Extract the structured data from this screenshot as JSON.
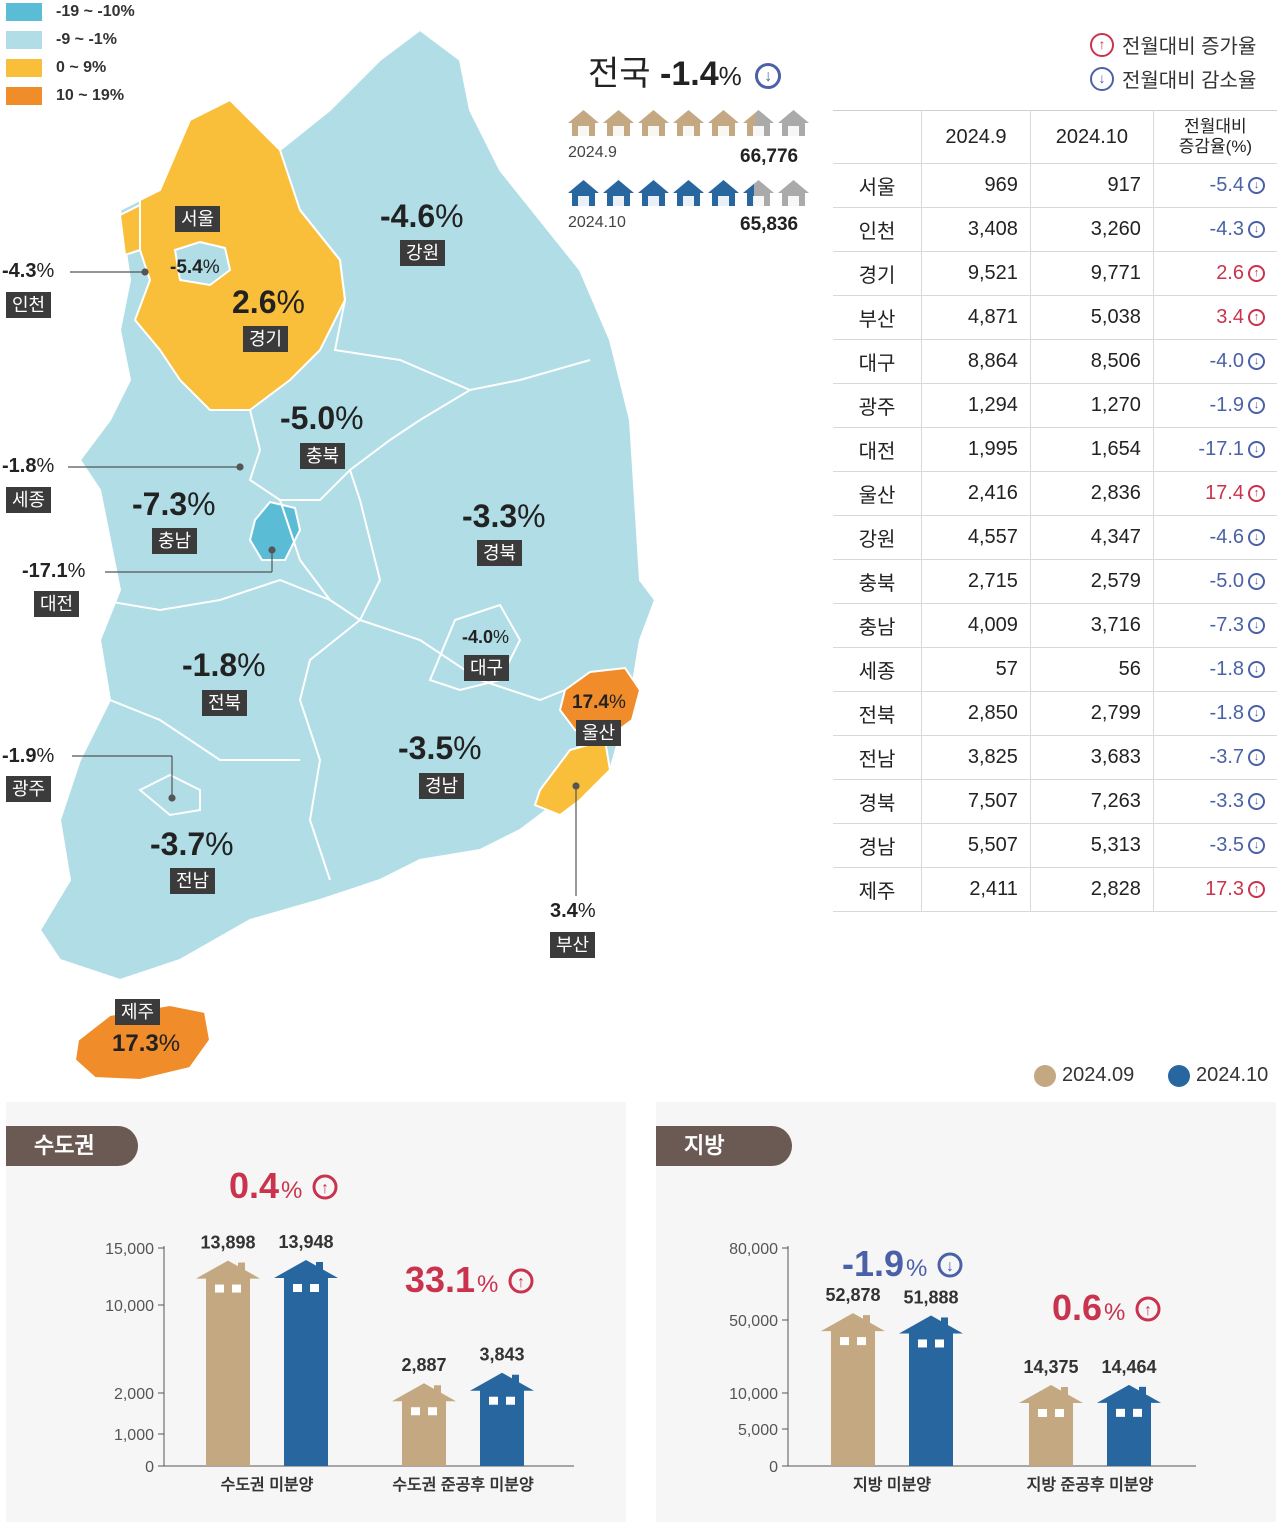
{
  "legend": [
    {
      "label": "-19 ~ -10%",
      "color": "#5bbcd6"
    },
    {
      "label": "-9 ~ -1%",
      "color": "#b0dde6"
    },
    {
      "label": "0 ~ 9%",
      "color": "#f9bf3b"
    },
    {
      "label": "10 ~ 19%",
      "color": "#f08c2a"
    }
  ],
  "national": {
    "label": "전국",
    "value": "-1.4",
    "unit": "%",
    "row1_label": "2024.9",
    "row1_total": "66,776",
    "row2_label": "2024.10",
    "row2_total": "65,836"
  },
  "arrow_legend": {
    "up": "전월대비 증가율",
    "down": "전월대비 감소율"
  },
  "map_regions": [
    {
      "name": "서울",
      "value": "-5.4",
      "unit": "%"
    },
    {
      "name": "인천",
      "value": "-4.3",
      "unit": "%"
    },
    {
      "name": "경기",
      "value": "2.6",
      "unit": "%"
    },
    {
      "name": "강원",
      "value": "-4.6",
      "unit": "%"
    },
    {
      "name": "충북",
      "value": "-5.0",
      "unit": "%"
    },
    {
      "name": "세종",
      "value": "-1.8",
      "unit": "%"
    },
    {
      "name": "충남",
      "value": "-7.3",
      "unit": "%"
    },
    {
      "name": "대전",
      "value": "-17.1",
      "unit": "%"
    },
    {
      "name": "경북",
      "value": "-3.3",
      "unit": "%"
    },
    {
      "name": "대구",
      "value": "-4.0",
      "unit": "%"
    },
    {
      "name": "전북",
      "value": "-1.8",
      "unit": "%"
    },
    {
      "name": "울산",
      "value": "17.4",
      "unit": "%"
    },
    {
      "name": "광주",
      "value": "-1.9",
      "unit": "%"
    },
    {
      "name": "경남",
      "value": "-3.5",
      "unit": "%"
    },
    {
      "name": "전남",
      "value": "-3.7",
      "unit": "%"
    },
    {
      "name": "부산",
      "value": "3.4",
      "unit": "%"
    },
    {
      "name": "제주",
      "value": "17.3",
      "unit": "%"
    }
  ],
  "table": {
    "headers": [
      "2024.9",
      "2024.10",
      "전월대비\n증감율(%)"
    ],
    "header_rate_line1": "전월대비",
    "header_rate_line2": "증감율(%)",
    "rows": [
      {
        "region": "서울",
        "sep": "969",
        "oct": "917",
        "rate": "-5.4",
        "dir": "down"
      },
      {
        "region": "인천",
        "sep": "3,408",
        "oct": "3,260",
        "rate": "-4.3",
        "dir": "down"
      },
      {
        "region": "경기",
        "sep": "9,521",
        "oct": "9,771",
        "rate": "2.6",
        "dir": "up"
      },
      {
        "region": "부산",
        "sep": "4,871",
        "oct": "5,038",
        "rate": "3.4",
        "dir": "up"
      },
      {
        "region": "대구",
        "sep": "8,864",
        "oct": "8,506",
        "rate": "-4.0",
        "dir": "down"
      },
      {
        "region": "광주",
        "sep": "1,294",
        "oct": "1,270",
        "rate": "-1.9",
        "dir": "down"
      },
      {
        "region": "대전",
        "sep": "1,995",
        "oct": "1,654",
        "rate": "-17.1",
        "dir": "down"
      },
      {
        "region": "울산",
        "sep": "2,416",
        "oct": "2,836",
        "rate": "17.4",
        "dir": "up"
      },
      {
        "region": "강원",
        "sep": "4,557",
        "oct": "4,347",
        "rate": "-4.6",
        "dir": "down"
      },
      {
        "region": "충북",
        "sep": "2,715",
        "oct": "2,579",
        "rate": "-5.0",
        "dir": "down"
      },
      {
        "region": "충남",
        "sep": "4,009",
        "oct": "3,716",
        "rate": "-7.3",
        "dir": "down"
      },
      {
        "region": "세종",
        "sep": "57",
        "oct": "56",
        "rate": "-1.8",
        "dir": "down"
      },
      {
        "region": "전북",
        "sep": "2,850",
        "oct": "2,799",
        "rate": "-1.8",
        "dir": "down"
      },
      {
        "region": "전남",
        "sep": "3,825",
        "oct": "3,683",
        "rate": "-3.7",
        "dir": "down"
      },
      {
        "region": "경북",
        "sep": "7,507",
        "oct": "7,263",
        "rate": "-3.3",
        "dir": "down"
      },
      {
        "region": "경남",
        "sep": "5,507",
        "oct": "5,313",
        "rate": "-3.5",
        "dir": "down"
      },
      {
        "region": "제주",
        "sep": "2,411",
        "oct": "2,828",
        "rate": "17.3",
        "dir": "up"
      }
    ]
  },
  "series_legend": [
    {
      "name": "2024.09",
      "color": "#c4a882"
    },
    {
      "name": "2024.10",
      "color": "#2866a0"
    }
  ],
  "colors": {
    "sep": "#c4a882",
    "oct": "#2866a0",
    "up": "#c9334d",
    "down": "#4a61a8",
    "panel_tab": "#6b5a54"
  },
  "chart_data": [
    {
      "type": "bar",
      "panel": "수도권",
      "categories": [
        "수도권 미분양",
        "수도권 준공후 미분양"
      ],
      "series": [
        {
          "name": "2024.09",
          "values": [
            13898,
            2887
          ],
          "labels": [
            "13,898",
            "2,887"
          ]
        },
        {
          "name": "2024.10",
          "values": [
            13948,
            3843
          ],
          "labels": [
            "13,948",
            "3,843"
          ]
        }
      ],
      "changes": [
        {
          "value": "0.4",
          "unit": "%",
          "dir": "up"
        },
        {
          "value": "33.1",
          "unit": "%",
          "dir": "up"
        }
      ],
      "yticks": [
        {
          "v": 0,
          "label": "0"
        },
        {
          "v": 1000,
          "label": "1,000"
        },
        {
          "v": 2000,
          "label": "2,000"
        },
        {
          "v": 10000,
          "label": "10,000"
        },
        {
          "v": 15000,
          "label": "15,000"
        }
      ],
      "ylim": [
        0,
        15000
      ],
      "scale": "broken"
    },
    {
      "type": "bar",
      "panel": "지방",
      "categories": [
        "지방 미분양",
        "지방 준공후 미분양"
      ],
      "series": [
        {
          "name": "2024.09",
          "values": [
            52878,
            14375
          ],
          "labels": [
            "52,878",
            "14,375"
          ]
        },
        {
          "name": "2024.10",
          "values": [
            51888,
            14464
          ],
          "labels": [
            "51,888",
            "14,464"
          ]
        }
      ],
      "changes": [
        {
          "value": "-1.9",
          "unit": "%",
          "dir": "down"
        },
        {
          "value": "0.6",
          "unit": "%",
          "dir": "up"
        }
      ],
      "yticks": [
        {
          "v": 0,
          "label": "0"
        },
        {
          "v": 5000,
          "label": "5,000"
        },
        {
          "v": 10000,
          "label": "10,000"
        },
        {
          "v": 50000,
          "label": "50,000"
        },
        {
          "v": 80000,
          "label": "80,000"
        }
      ],
      "ylim": [
        0,
        80000
      ],
      "scale": "broken"
    }
  ]
}
